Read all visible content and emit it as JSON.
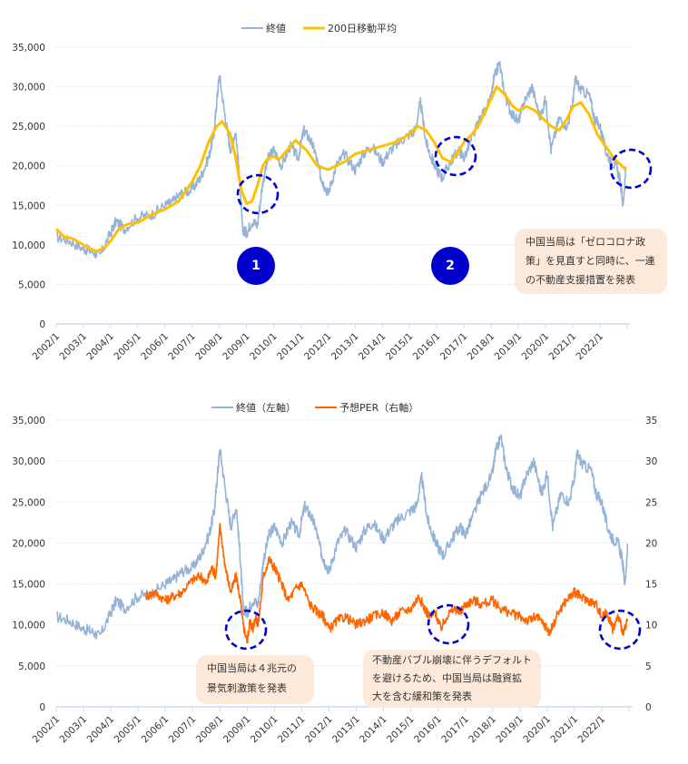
{
  "chart_data": [
    {
      "type": "line",
      "title": "",
      "xlabel": "",
      "ylabel": "",
      "legend_position": "top-center",
      "grid": true,
      "ylim": [
        0,
        35000
      ],
      "yticks": [
        "0",
        "5,000",
        "10,000",
        "15,000",
        "20,000",
        "25,000",
        "30,000",
        "35,000"
      ],
      "xticks": [
        "2002/1",
        "2003/1",
        "2004/1",
        "2005/1",
        "2006/1",
        "2007/1",
        "2008/1",
        "2009/1",
        "2010/1",
        "2011/1",
        "2012/1",
        "2013/1",
        "2014/1",
        "2015/1",
        "2016/1",
        "2017/1",
        "2018/1",
        "2019/1",
        "2020/1",
        "2021/1",
        "2022/1"
      ],
      "series": [
        {
          "name": "終値",
          "color": "#95b3d7",
          "x": [
            2002.0,
            2002.5,
            2003.0,
            2003.3,
            2003.6,
            2004.0,
            2004.2,
            2004.5,
            2005.0,
            2005.5,
            2006.0,
            2006.3,
            2006.6,
            2007.0,
            2007.3,
            2007.6,
            2007.8,
            2007.9,
            2008.0,
            2008.2,
            2008.4,
            2008.6,
            2008.75,
            2008.85,
            2009.0,
            2009.2,
            2009.4,
            2009.6,
            2009.8,
            2010.0,
            2010.3,
            2010.6,
            2010.9,
            2011.1,
            2011.3,
            2011.5,
            2011.7,
            2011.8,
            2012.0,
            2012.3,
            2012.6,
            2013.0,
            2013.3,
            2013.6,
            2014.0,
            2014.3,
            2014.6,
            2015.0,
            2015.2,
            2015.4,
            2015.6,
            2015.8,
            2016.0,
            2016.2,
            2016.5,
            2016.8,
            2017.0,
            2017.3,
            2017.6,
            2018.0,
            2018.1,
            2018.3,
            2018.5,
            2018.7,
            2019.0,
            2019.2,
            2019.5,
            2019.8,
            2020.0,
            2020.2,
            2020.5,
            2020.8,
            2021.0,
            2021.1,
            2021.3,
            2021.6,
            2021.8,
            2022.0,
            2022.2,
            2022.4,
            2022.6,
            2022.75,
            2022.85,
            2022.95
          ],
          "values": [
            11000,
            10500,
            9500,
            9200,
            8600,
            11500,
            13000,
            12000,
            13500,
            13800,
            15000,
            15500,
            16500,
            17000,
            18500,
            21000,
            24000,
            28000,
            31500,
            26500,
            22000,
            24500,
            18000,
            12000,
            11500,
            13000,
            12500,
            18000,
            21000,
            22000,
            20000,
            22500,
            21000,
            24500,
            23500,
            22000,
            19000,
            18000,
            16500,
            20000,
            21500,
            19500,
            21500,
            22500,
            20500,
            22000,
            23000,
            24000,
            24500,
            28000,
            23000,
            21000,
            19500,
            18500,
            20500,
            22000,
            21000,
            23500,
            26000,
            28500,
            31000,
            33000,
            29000,
            27000,
            25500,
            28000,
            30000,
            26000,
            28500,
            22000,
            26000,
            25000,
            28000,
            31000,
            29500,
            29000,
            26000,
            25000,
            22000,
            20500,
            20000,
            18000,
            15000,
            19500
          ]
        },
        {
          "name": "200日移動平均",
          "color": "#ffc000",
          "x": [
            2002.0,
            2002.3,
            2002.6,
            2003.0,
            2003.3,
            2003.5,
            2003.8,
            2004.0,
            2004.3,
            2004.6,
            2005.0,
            2005.5,
            2006.0,
            2006.5,
            2007.0,
            2007.3,
            2007.6,
            2007.9,
            2008.1,
            2008.4,
            2008.6,
            2008.8,
            2009.0,
            2009.2,
            2009.4,
            2009.6,
            2009.8,
            2010.0,
            2010.2,
            2010.5,
            2010.8,
            2011.2,
            2011.6,
            2012.0,
            2012.3,
            2012.6,
            2013.0,
            2013.5,
            2014.0,
            2014.5,
            2015.0,
            2015.3,
            2015.6,
            2015.9,
            2016.2,
            2016.5,
            2016.8,
            2017.0,
            2017.3,
            2017.6,
            2018.0,
            2018.2,
            2018.5,
            2018.8,
            2019.0,
            2019.3,
            2019.6,
            2019.9,
            2020.2,
            2020.5,
            2020.8,
            2021.0,
            2021.3,
            2021.6,
            2021.9,
            2022.2,
            2022.5,
            2022.8,
            2022.95
          ],
          "values": [
            12000,
            11000,
            10800,
            10000,
            9400,
            9200,
            9700,
            10500,
            12000,
            12600,
            12800,
            13800,
            14500,
            15500,
            18000,
            20000,
            23000,
            25000,
            25600,
            24000,
            21000,
            17000,
            15200,
            15500,
            17500,
            20000,
            21000,
            21200,
            20800,
            22000,
            23200,
            22000,
            20000,
            19500,
            20000,
            20500,
            21500,
            22000,
            22500,
            23000,
            24000,
            25000,
            24500,
            23000,
            21000,
            20500,
            21800,
            23000,
            24000,
            25500,
            28500,
            30000,
            29000,
            27500,
            27000,
            27500,
            27000,
            26000,
            25000,
            24500,
            26000,
            27500,
            28000,
            26500,
            24000,
            22500,
            21000,
            20000,
            19500
          ]
        }
      ],
      "annotations": [
        {
          "type": "marker",
          "label": "1",
          "x": 2009.1
        },
        {
          "type": "marker",
          "label": "2",
          "x": 2016.3
        },
        {
          "type": "dashed-circle",
          "x": 2009.4,
          "y": 16000
        },
        {
          "type": "dashed-circle",
          "x": 2016.6,
          "y": 21000
        },
        {
          "type": "dashed-circle",
          "x": 2023.2,
          "y": 19500
        },
        {
          "type": "callout",
          "text": "中国当局は「ゼロコロナ政\n策」を見直すと同時に、一連\nの不動産支援措置を発表"
        }
      ]
    },
    {
      "type": "line",
      "title": "",
      "xlabel": "",
      "ylabel": "",
      "legend_position": "top-center",
      "grid": true,
      "ylim": [
        0,
        35000
      ],
      "y2lim": [
        0,
        35
      ],
      "yticks": [
        "0",
        "5,000",
        "10,000",
        "15,000",
        "20,000",
        "25,000",
        "30,000",
        "35,000"
      ],
      "y2ticks": [
        "0",
        "5",
        "10",
        "15",
        "20",
        "25",
        "30",
        "35"
      ],
      "xticks": [
        "2002/1",
        "2003/1",
        "2004/1",
        "2005/1",
        "2006/1",
        "2007/1",
        "2008/1",
        "2009/1",
        "2010/1",
        "2011/1",
        "2012/1",
        "2013/1",
        "2014/1",
        "2015/1",
        "2016/1",
        "2017/1",
        "2018/1",
        "2019/1",
        "2020/1",
        "2021/1",
        "2022/1"
      ],
      "series": [
        {
          "name": "終値（左軸）",
          "axis": "left",
          "color": "#95b3d7",
          "x": [
            2002.0,
            2002.5,
            2003.0,
            2003.3,
            2003.6,
            2004.0,
            2004.2,
            2004.5,
            2005.0,
            2005.5,
            2006.0,
            2006.3,
            2006.6,
            2007.0,
            2007.3,
            2007.6,
            2007.8,
            2007.9,
            2008.0,
            2008.2,
            2008.4,
            2008.6,
            2008.75,
            2008.85,
            2009.0,
            2009.2,
            2009.4,
            2009.6,
            2009.8,
            2010.0,
            2010.3,
            2010.6,
            2010.9,
            2011.1,
            2011.3,
            2011.5,
            2011.7,
            2011.8,
            2012.0,
            2012.3,
            2012.6,
            2013.0,
            2013.3,
            2013.6,
            2014.0,
            2014.3,
            2014.6,
            2015.0,
            2015.2,
            2015.4,
            2015.6,
            2015.8,
            2016.0,
            2016.2,
            2016.5,
            2016.8,
            2017.0,
            2017.3,
            2017.6,
            2018.0,
            2018.1,
            2018.3,
            2018.5,
            2018.7,
            2019.0,
            2019.2,
            2019.5,
            2019.8,
            2020.0,
            2020.2,
            2020.5,
            2020.8,
            2021.0,
            2021.1,
            2021.3,
            2021.6,
            2021.8,
            2022.0,
            2022.2,
            2022.4,
            2022.6,
            2022.75,
            2022.85,
            2022.95
          ],
          "values": [
            11000,
            10500,
            9500,
            9200,
            8600,
            11500,
            13000,
            12000,
            13500,
            13800,
            15000,
            15500,
            16500,
            17000,
            18500,
            21000,
            24000,
            28000,
            31500,
            26500,
            22000,
            24500,
            18000,
            12000,
            11500,
            13000,
            12500,
            18000,
            21000,
            22000,
            20000,
            22500,
            21000,
            24500,
            23500,
            22000,
            19000,
            18000,
            16500,
            20000,
            21500,
            19500,
            21500,
            22500,
            20500,
            22000,
            23000,
            24000,
            24500,
            28000,
            23000,
            21000,
            19500,
            18500,
            20500,
            22000,
            21000,
            23500,
            26000,
            28500,
            31000,
            33000,
            29000,
            27000,
            25500,
            28000,
            30000,
            26000,
            28500,
            22000,
            26000,
            25000,
            28000,
            31000,
            29500,
            29000,
            26000,
            25000,
            22000,
            20500,
            20000,
            18000,
            15000,
            19500
          ]
        },
        {
          "name": "予想PER（右軸）",
          "axis": "right",
          "color": "#ff6600",
          "x": [
            2005.3,
            2005.6,
            2006.0,
            2006.3,
            2006.6,
            2007.0,
            2007.3,
            2007.5,
            2007.7,
            2007.85,
            2008.0,
            2008.2,
            2008.4,
            2008.6,
            2008.75,
            2008.85,
            2009.0,
            2009.1,
            2009.2,
            2009.3,
            2009.4,
            2009.6,
            2009.8,
            2010.0,
            2010.2,
            2010.5,
            2010.8,
            2011.0,
            2011.3,
            2011.6,
            2011.8,
            2012.0,
            2012.3,
            2012.6,
            2013.0,
            2013.3,
            2013.6,
            2014.0,
            2014.3,
            2014.6,
            2015.0,
            2015.3,
            2015.5,
            2015.7,
            2015.9,
            2016.1,
            2016.3,
            2016.6,
            2016.8,
            2017.0,
            2017.3,
            2017.6,
            2018.0,
            2018.3,
            2018.6,
            2019.0,
            2019.3,
            2019.6,
            2019.9,
            2020.1,
            2020.4,
            2020.7,
            2021.0,
            2021.2,
            2021.5,
            2021.8,
            2022.0,
            2022.2,
            2022.4,
            2022.6,
            2022.8,
            2022.95
          ],
          "values": [
            13.5,
            14,
            13,
            13.5,
            14,
            15.5,
            16,
            15,
            17,
            16,
            22,
            17,
            14,
            16,
            13,
            10,
            8,
            10.5,
            9.5,
            11,
            10,
            16,
            18,
            17,
            15.5,
            13,
            14.5,
            15,
            12.5,
            11.5,
            11,
            9.5,
            10.5,
            11,
            10,
            10.5,
            11,
            11.5,
            10.5,
            11.5,
            12,
            13.5,
            12,
            11,
            11.5,
            9.5,
            11,
            12,
            11.5,
            12.5,
            13,
            12.5,
            13,
            12,
            11.5,
            11,
            10.5,
            11,
            10,
            9,
            11.5,
            13,
            14,
            13.5,
            13,
            12.5,
            11,
            11.5,
            9.5,
            11,
            9,
            10.5
          ]
        }
      ],
      "annotations": [
        {
          "type": "dashed-circle",
          "x": 2009.0,
          "y2": 9.5
        },
        {
          "type": "dashed-circle",
          "x": 2016.2,
          "y2": 10.0
        },
        {
          "type": "dashed-circle",
          "x": 2022.5,
          "y2": 9.5
        },
        {
          "type": "callout",
          "text": "中国当局は４兆元の\n景気刺激策を発表"
        },
        {
          "type": "callout",
          "text": "不動産バブル崩壊に伴うデフォルト\nを避けるため、中国当局は融資拡\n大を含む緩和策を発表"
        }
      ]
    }
  ]
}
